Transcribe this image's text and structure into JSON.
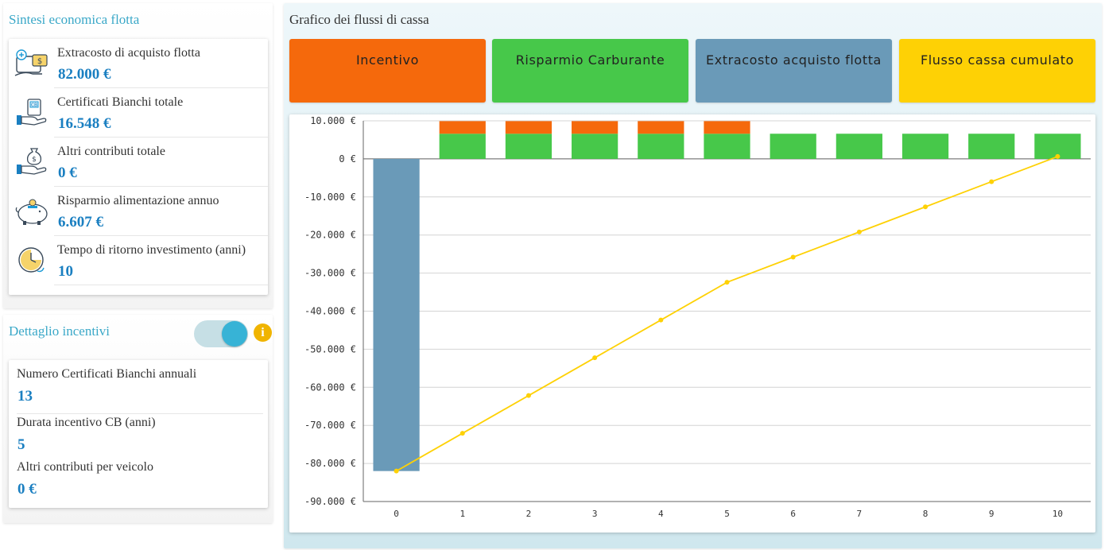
{
  "sintesi": {
    "title": "Sintesi economica flotta",
    "items": [
      {
        "label": "Extracosto di acquisto flotta",
        "value": "82.000 €",
        "icon": "purchase-cost-icon"
      },
      {
        "label": "Certificati Bianchi totale",
        "value": "16.548 €",
        "icon": "certificate-hand-icon"
      },
      {
        "label": "Altri contributi totale",
        "value": "0 €",
        "icon": "money-bag-hand-icon"
      },
      {
        "label": "Risparmio alimentazione annuo",
        "value": "6.607 €",
        "icon": "piggy-bank-icon"
      },
      {
        "label": "Tempo di ritorno investimento (anni)",
        "value": "10",
        "icon": "payback-clock-icon"
      }
    ]
  },
  "dettaglio": {
    "title": "Dettaglio incentivi",
    "toggle_on": true,
    "info_glyph": "i",
    "items": [
      {
        "label": "Numero Certificati Bianchi annuali",
        "value": "13"
      },
      {
        "label": "Durata incentivo CB (anni)",
        "value": "5"
      },
      {
        "label": "Altri contributi per veicolo",
        "value": "0 €"
      }
    ]
  },
  "grafico": {
    "title": "Grafico dei flussi di cassa",
    "legend": [
      {
        "label": "Incentivo",
        "color": "#f5690c"
      },
      {
        "label": "Risparmio Carburante",
        "color": "#47c84a"
      },
      {
        "label": "Extracosto acquisto flotta",
        "color": "#6a9ab8"
      },
      {
        "label": "Flusso cassa cumulato",
        "color": "#fed105"
      }
    ]
  },
  "chart_data": {
    "type": "bar",
    "categories": [
      "0",
      "1",
      "2",
      "3",
      "4",
      "5",
      "6",
      "7",
      "8",
      "9",
      "10"
    ],
    "stacked": true,
    "series": [
      {
        "name": "Extracosto acquisto flotta",
        "color": "#6a9ab8",
        "values": [
          -82000,
          0,
          0,
          0,
          0,
          0,
          0,
          0,
          0,
          0,
          0
        ]
      },
      {
        "name": "Risparmio Carburante",
        "color": "#47c84a",
        "values": [
          0,
          6607,
          6607,
          6607,
          6607,
          6607,
          6607,
          6607,
          6607,
          6607,
          6607
        ]
      },
      {
        "name": "Incentivo",
        "color": "#f5690c",
        "values": [
          0,
          3310,
          3310,
          3310,
          3310,
          3310,
          0,
          0,
          0,
          0,
          0
        ]
      },
      {
        "name": "Flusso cassa cumulato",
        "type": "line",
        "color": "#fed105",
        "values": [
          -82000,
          -72083,
          -62166,
          -52249,
          -42332,
          -32415,
          -25808,
          -19201,
          -12594,
          -5987,
          620
        ]
      }
    ],
    "yticks": [
      10000,
      0,
      -10000,
      -20000,
      -30000,
      -40000,
      -50000,
      -60000,
      -70000,
      -80000,
      -90000
    ],
    "ytick_labels": [
      "10.000 €",
      "0 €",
      "-10.000 €",
      "-20.000 €",
      "-30.000 €",
      "-40.000 €",
      "-50.000 €",
      "-60.000 €",
      "-70.000 €",
      "-80.000 €",
      "-90.000 €"
    ],
    "ylim": [
      -90000,
      10000
    ],
    "grid": true,
    "legend": "top"
  }
}
